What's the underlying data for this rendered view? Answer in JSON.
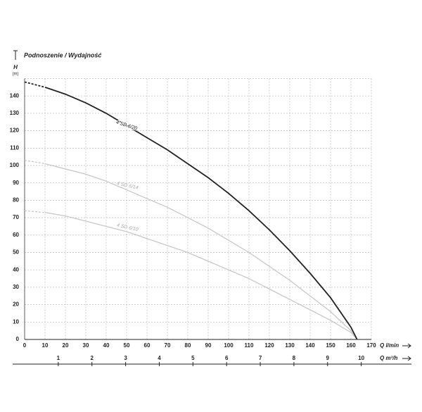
{
  "chart_data": {
    "type": "line",
    "title": "Podnoszenie / Wydajność",
    "y_label": "H",
    "y_unit": "(m)",
    "x_label": "Q l/min",
    "x2_label": "Q m³/h",
    "x": [
      0,
      10,
      20,
      30,
      40,
      50,
      60,
      70,
      80,
      90,
      100,
      110,
      120,
      130,
      140,
      150,
      160,
      163
    ],
    "series": [
      {
        "name": "4 SD 6/20",
        "color": "#222222",
        "values": [
          148,
          145,
          141,
          136,
          130,
          123,
          116,
          109,
          101,
          93,
          84,
          74,
          63,
          51,
          38,
          24,
          7,
          0
        ]
      },
      {
        "name": "4 SD 6/14",
        "color": "#c8c8c8",
        "values": [
          103,
          101,
          98,
          95,
          91,
          86,
          81,
          76,
          70,
          64,
          57,
          50,
          42,
          34,
          25,
          16,
          5,
          0
        ]
      },
      {
        "name": "4 SD 6/10",
        "color": "#c8c8c8",
        "values": [
          74,
          73,
          71,
          68,
          65,
          62,
          58,
          54,
          50,
          45,
          40,
          35,
          29,
          23,
          17,
          11,
          4,
          0
        ]
      }
    ],
    "xlim": [
      0,
      170
    ],
    "xticks": [
      0,
      10,
      20,
      30,
      40,
      50,
      60,
      70,
      80,
      90,
      100,
      110,
      120,
      130,
      140,
      150,
      160,
      170
    ],
    "ylim": [
      0,
      150
    ],
    "yticks": [
      0,
      10,
      20,
      30,
      40,
      50,
      60,
      70,
      80,
      90,
      100,
      110,
      120,
      130,
      140
    ],
    "x2lim": [
      0,
      10.3
    ],
    "x2ticks": [
      1,
      2,
      3,
      4,
      5,
      6,
      7,
      8,
      9,
      10
    ],
    "grid": true
  }
}
